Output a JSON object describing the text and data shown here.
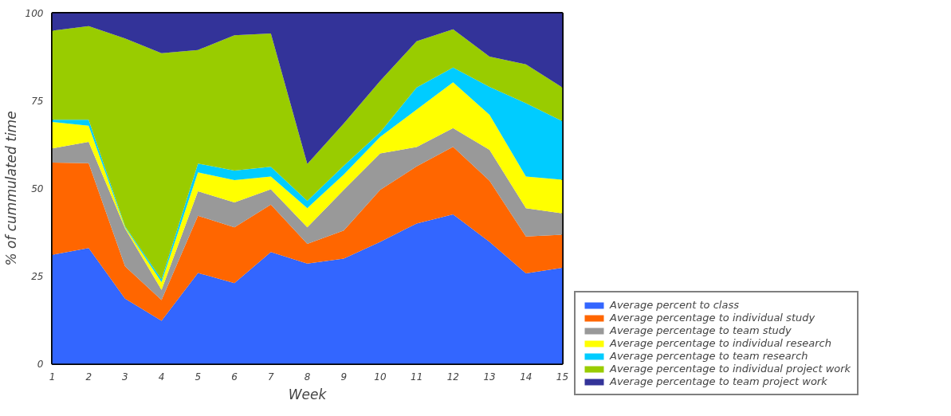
{
  "chart_data": {
    "type": "area",
    "stacked": true,
    "xlabel": "Week",
    "ylabel": "% of cummulated time",
    "x": [
      1,
      2,
      3,
      4,
      5,
      6,
      7,
      8,
      9,
      10,
      11,
      12,
      13,
      14,
      15
    ],
    "xlim": [
      1,
      15
    ],
    "xticks": [
      1,
      2,
      3,
      4,
      5,
      6,
      7,
      8,
      9,
      10,
      11,
      12,
      13,
      14,
      15
    ],
    "ylim": [
      0,
      100
    ],
    "yticks": [
      0,
      25,
      50,
      75,
      100
    ],
    "grid": false,
    "legend": "right",
    "series": [
      {
        "name": "Average percent to class",
        "color": "#3366ff",
        "values": [
          31.1,
          33.0,
          18.6,
          12.3,
          25.9,
          23.0,
          31.9,
          28.6,
          30.0,
          34.8,
          40.0,
          42.6,
          34.8,
          25.8,
          27.4
        ]
      },
      {
        "name": "Average percentage to individual study",
        "color": "#ff6600",
        "values": [
          26.3,
          24.2,
          9.2,
          5.9,
          16.3,
          15.9,
          13.5,
          5.6,
          8.0,
          14.8,
          16.3,
          19.3,
          17.4,
          10.5,
          9.4
        ]
      },
      {
        "name": "Average percentage to team study",
        "color": "#999999",
        "values": [
          4.0,
          6.1,
          10.8,
          2.9,
          7.0,
          7.1,
          4.4,
          4.7,
          11.6,
          10.4,
          5.5,
          5.3,
          8.8,
          8.1,
          6.1
        ]
      },
      {
        "name": "Average percentage to individual research",
        "color": "#ffff00",
        "values": [
          7.6,
          4.6,
          0.3,
          2.2,
          5.4,
          6.4,
          3.6,
          5.5,
          4.4,
          4.7,
          10.7,
          13.1,
          10.0,
          9.0,
          9.6
        ]
      },
      {
        "name": "Average percentage to team research",
        "color": "#00ccff",
        "values": [
          0.6,
          1.7,
          0.3,
          0.8,
          2.5,
          2.7,
          2.8,
          2.1,
          2.5,
          1.3,
          6.3,
          4.2,
          8.0,
          20.9,
          16.7
        ]
      },
      {
        "name": "Average percentage to individual project work",
        "color": "#99cc00",
        "values": [
          25.4,
          26.7,
          53.6,
          64.5,
          32.4,
          38.6,
          38.0,
          10.5,
          12.0,
          14.7,
          13.2,
          10.9,
          8.6,
          11.1,
          9.6
        ]
      },
      {
        "name": "Average percentage to team project work",
        "color": "#333399",
        "values": [
          5.0,
          3.7,
          7.2,
          11.4,
          10.5,
          6.3,
          5.8,
          43.0,
          31.5,
          19.3,
          8.0,
          4.6,
          12.4,
          14.6,
          21.2
        ]
      }
    ]
  }
}
